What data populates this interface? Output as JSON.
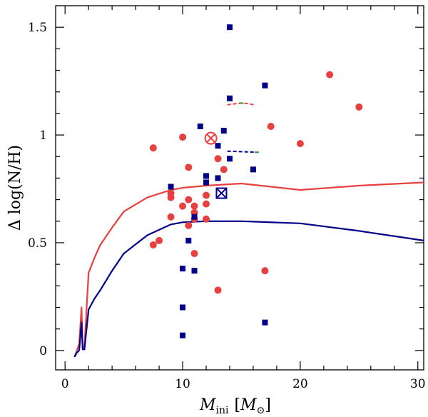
{
  "chart_data": {
    "type": "scatter",
    "title": "",
    "xlabel": {
      "symbol": "M",
      "subscript": "ini",
      "unit_symbol": "M",
      "unit_subscript": "⊙"
    },
    "ylabel": {
      "prefix": "Δ log",
      "text": "(N/H)"
    },
    "xlim": [
      -0.8,
      30.5
    ],
    "ylim": [
      -0.09,
      1.6
    ],
    "x_ticks": [
      0,
      10,
      20,
      30
    ],
    "x_tick_labels": [
      "0",
      "10",
      "20",
      "30"
    ],
    "y_ticks": [
      0,
      0.5,
      1,
      1.5
    ],
    "y_tick_labels": [
      "0",
      "0.5",
      "1",
      "1.5"
    ],
    "grid": false,
    "colors": {
      "red": "#e8403f",
      "blue": "#00008b",
      "green": "#3c9a3c"
    },
    "series": [
      {
        "name": "red-circles",
        "marker": "circle",
        "color": "#e8403f",
        "points": [
          [
            7.5,
            0.94
          ],
          [
            7.5,
            0.49
          ],
          [
            8,
            0.51
          ],
          [
            9,
            0.73
          ],
          [
            9,
            0.71
          ],
          [
            9,
            0.62
          ],
          [
            10,
            0.99
          ],
          [
            10,
            0.67
          ],
          [
            10.5,
            0.85
          ],
          [
            10.5,
            0.7
          ],
          [
            10.5,
            0.58
          ],
          [
            11,
            0.67
          ],
          [
            11,
            0.64
          ],
          [
            11,
            0.61
          ],
          [
            11,
            0.45
          ],
          [
            12,
            0.72
          ],
          [
            12,
            0.68
          ],
          [
            12,
            0.61
          ],
          [
            13,
            0.89
          ],
          [
            13,
            0.28
          ],
          [
            13.5,
            0.84
          ],
          [
            17,
            0.37
          ],
          [
            17.5,
            1.04
          ],
          [
            20,
            0.96
          ],
          [
            22.5,
            1.28
          ],
          [
            25,
            1.13
          ]
        ]
      },
      {
        "name": "blue-squares",
        "marker": "square",
        "color": "#00008b",
        "points": [
          [
            9,
            0.76
          ],
          [
            10,
            0.38
          ],
          [
            10,
            0.2
          ],
          [
            10,
            0.07
          ],
          [
            10.5,
            0.51
          ],
          [
            11,
            0.62
          ],
          [
            11,
            0.37
          ],
          [
            11.5,
            1.04
          ],
          [
            12,
            0.81
          ],
          [
            12,
            0.78
          ],
          [
            12.5,
            0.98
          ],
          [
            13,
            0.95
          ],
          [
            13,
            0.8
          ],
          [
            13.5,
            1.02
          ],
          [
            14,
            1.5
          ],
          [
            14,
            1.17
          ],
          [
            14,
            0.89
          ],
          [
            16,
            0.84
          ],
          [
            17,
            1.23
          ],
          [
            17,
            0.13
          ]
        ]
      },
      {
        "name": "special-circle-cross",
        "marker": "circle-cross",
        "color": "#e8403f",
        "points": [
          [
            12.4,
            0.985
          ]
        ]
      },
      {
        "name": "special-square-cross",
        "marker": "square-cross",
        "color": "#00008b",
        "points": [
          [
            13.3,
            0.73
          ]
        ]
      },
      {
        "name": "red-track-curve",
        "kind": "line",
        "color": "#e8403f",
        "points": [
          [
            0.8,
            -0.03
          ],
          [
            1.0,
            0.0
          ],
          [
            1.2,
            0.03
          ],
          [
            1.4,
            0.2
          ],
          [
            1.5,
            0.01
          ],
          [
            1.65,
            0.02
          ],
          [
            2,
            0.36
          ],
          [
            2.5,
            0.43
          ],
          [
            3,
            0.49
          ],
          [
            4,
            0.57
          ],
          [
            5,
            0.645
          ],
          [
            7,
            0.71
          ],
          [
            9,
            0.745
          ],
          [
            10,
            0.755
          ],
          [
            12,
            0.765
          ],
          [
            15,
            0.775
          ],
          [
            20,
            0.745
          ],
          [
            25,
            0.765
          ],
          [
            30.5,
            0.78
          ]
        ]
      },
      {
        "name": "blue-track-curve",
        "kind": "line",
        "color": "#00008b",
        "points": [
          [
            0.8,
            -0.03
          ],
          [
            1.0,
            -0.01
          ],
          [
            1.2,
            0.0
          ],
          [
            1.4,
            0.13
          ],
          [
            1.5,
            0.005
          ],
          [
            1.65,
            0.005
          ],
          [
            2,
            0.19
          ],
          [
            2.5,
            0.24
          ],
          [
            3,
            0.28
          ],
          [
            4,
            0.37
          ],
          [
            5,
            0.45
          ],
          [
            7,
            0.535
          ],
          [
            9,
            0.585
          ],
          [
            10,
            0.595
          ],
          [
            12,
            0.6
          ],
          [
            15,
            0.6
          ],
          [
            20,
            0.59
          ],
          [
            25,
            0.555
          ],
          [
            30.5,
            0.51
          ]
        ]
      },
      {
        "name": "red-dashed-segment",
        "kind": "dashed",
        "color": "#e8403f",
        "points": [
          [
            13.8,
            1.14
          ],
          [
            14.5,
            1.145
          ],
          [
            15,
            1.148
          ],
          [
            15.5,
            1.146
          ],
          [
            16.1,
            1.14
          ]
        ]
      },
      {
        "name": "blue-dashed-segment",
        "kind": "dashed",
        "color": "#00008b",
        "points": [
          [
            13.8,
            0.925
          ],
          [
            16.3,
            0.92
          ]
        ]
      }
    ]
  }
}
